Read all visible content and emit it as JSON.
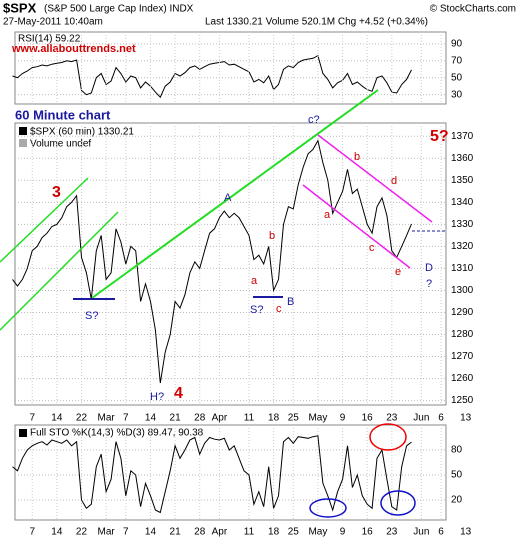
{
  "header": {
    "symbol": "$SPX",
    "name": "(S&P 500 Large Cap Index) INDX",
    "source": "© StockCharts.com",
    "date": "27-May-2011 10:40am",
    "quote": "Last 1330.21  Volume 520.1M  Chg +4.52 (+0.34%)",
    "site": "www.allabouttrends.net",
    "note": "60 Minute chart"
  },
  "chart_data": [
    {
      "type": "line",
      "title": "RSI(14) 59.22",
      "grid": true,
      "series": [
        {
          "name": "RSI(14)",
          "color": "#000000",
          "values": [
            52,
            50,
            55,
            58,
            62,
            63,
            65,
            64,
            66,
            67,
            68,
            70,
            69,
            71,
            35,
            30,
            32,
            50,
            55,
            42,
            46,
            62,
            55,
            45,
            52,
            50,
            38,
            45,
            40,
            33,
            27,
            40,
            45,
            55,
            52,
            56,
            62,
            64,
            60,
            63,
            66,
            67,
            68,
            69,
            65,
            66,
            63,
            60,
            57,
            45,
            48,
            44,
            52,
            36,
            42,
            60,
            64,
            62,
            68,
            71,
            72,
            73,
            76,
            55,
            48,
            38,
            44,
            47,
            55,
            42,
            45,
            40,
            36,
            34,
            50,
            52,
            44,
            33,
            32,
            42,
            48,
            59.22
          ]
        }
      ],
      "xlim": [
        0.5,
        88
      ],
      "ylim": [
        19,
        104
      ],
      "yticks": [
        30,
        50,
        70,
        90
      ]
    },
    {
      "type": "line",
      "title": "$SPX (60 min) 1330.21",
      "subtitle": "Volume undef",
      "grid": true,
      "series": [
        {
          "name": "$SPX",
          "color": "#000000",
          "values": [
            1305,
            1302,
            1305,
            1310,
            1318,
            1320,
            1324,
            1326,
            1329,
            1330,
            1333,
            1338,
            1340,
            1343,
            1315,
            1308,
            1296,
            1318,
            1325,
            1305,
            1308,
            1328,
            1322,
            1312,
            1320,
            1318,
            1295,
            1303,
            1295,
            1282,
            1258,
            1272,
            1280,
            1295,
            1292,
            1298,
            1308,
            1313,
            1310,
            1318,
            1326,
            1328,
            1333,
            1336,
            1333,
            1335,
            1333,
            1329,
            1325,
            1314,
            1316,
            1312,
            1320,
            1300,
            1305,
            1330,
            1338,
            1337,
            1348,
            1356,
            1362,
            1364,
            1368,
            1358,
            1350,
            1335,
            1340,
            1345,
            1355,
            1344,
            1346,
            1338,
            1330,
            1326,
            1338,
            1342,
            1334,
            1318,
            1315,
            1320,
            1325,
            1330.21
          ]
        }
      ],
      "xlim": [
        0.5,
        88
      ],
      "ylim": [
        1248,
        1376
      ],
      "yticks": [
        1250,
        1260,
        1270,
        1280,
        1290,
        1300,
        1310,
        1320,
        1330,
        1340,
        1350,
        1360,
        1370
      ],
      "xticks": [
        {
          "value": 4,
          "label": "7"
        },
        {
          "value": 9,
          "label": "14"
        },
        {
          "value": 14,
          "label": "22"
        },
        {
          "value": 19,
          "label": "Mar"
        },
        {
          "value": 23,
          "label": "7"
        },
        {
          "value": 28,
          "label": "14"
        },
        {
          "value": 33,
          "label": "21"
        },
        {
          "value": 38,
          "label": "28"
        },
        {
          "value": 42,
          "label": "Apr"
        },
        {
          "value": 48,
          "label": "11"
        },
        {
          "value": 53,
          "label": "18"
        },
        {
          "value": 57,
          "label": "25"
        },
        {
          "value": 62,
          "label": "May"
        },
        {
          "value": 67,
          "label": "9"
        },
        {
          "value": 72,
          "label": "16"
        },
        {
          "value": 77,
          "label": "23"
        },
        {
          "value": 83,
          "label": "Jun"
        },
        {
          "value": 87,
          "label": "6"
        },
        {
          "value": 92,
          "label": "13"
        }
      ],
      "annotations": [
        "3",
        "S?",
        "H?",
        "4",
        "A",
        "a",
        "b",
        "c",
        "S?",
        "B",
        "c?",
        "a",
        "b",
        "c",
        "d",
        "e",
        "D",
        "?",
        "5?"
      ]
    },
    {
      "type": "line",
      "title": "Full STO %K(14,3) %D(3) 89.47, 90.38",
      "grid": true,
      "series": [
        {
          "name": "%K(14,3)",
          "color": "#000000",
          "values": [
            60,
            55,
            70,
            80,
            85,
            88,
            90,
            86,
            92,
            90,
            88,
            92,
            85,
            90,
            20,
            10,
            15,
            60,
            75,
            30,
            45,
            90,
            70,
            25,
            55,
            50,
            12,
            40,
            25,
            8,
            5,
            30,
            55,
            85,
            70,
            80,
            92,
            95,
            75,
            88,
            95,
            93,
            92,
            94,
            80,
            85,
            70,
            55,
            50,
            15,
            30,
            12,
            60,
            10,
            25,
            90,
            95,
            88,
            96,
            95,
            94,
            96,
            97,
            40,
            25,
            8,
            30,
            45,
            85,
            35,
            50,
            25,
            15,
            10,
            70,
            80,
            45,
            12,
            8,
            60,
            85,
            89.47
          ]
        }
      ],
      "xlim": [
        0.5,
        88
      ],
      "ylim": [
        -4,
        110
      ],
      "yticks": [
        20,
        50,
        80
      ],
      "xticks": [
        {
          "value": 4,
          "label": "7"
        },
        {
          "value": 9,
          "label": "14"
        },
        {
          "value": 14,
          "label": "22"
        },
        {
          "value": 19,
          "label": "Mar"
        },
        {
          "value": 23,
          "label": "7"
        },
        {
          "value": 28,
          "label": "14"
        },
        {
          "value": 33,
          "label": "21"
        },
        {
          "value": 38,
          "label": "28"
        },
        {
          "value": 42,
          "label": "Apr"
        },
        {
          "value": 48,
          "label": "11"
        },
        {
          "value": 53,
          "label": "18"
        },
        {
          "value": 57,
          "label": "25"
        },
        {
          "value": 62,
          "label": "May"
        },
        {
          "value": 67,
          "label": "9"
        },
        {
          "value": 72,
          "label": "16"
        },
        {
          "value": 77,
          "label": "23"
        },
        {
          "value": 83,
          "label": "Jun"
        },
        {
          "value": 87,
          "label": "6"
        },
        {
          "value": 92,
          "label": "13"
        }
      ]
    }
  ]
}
